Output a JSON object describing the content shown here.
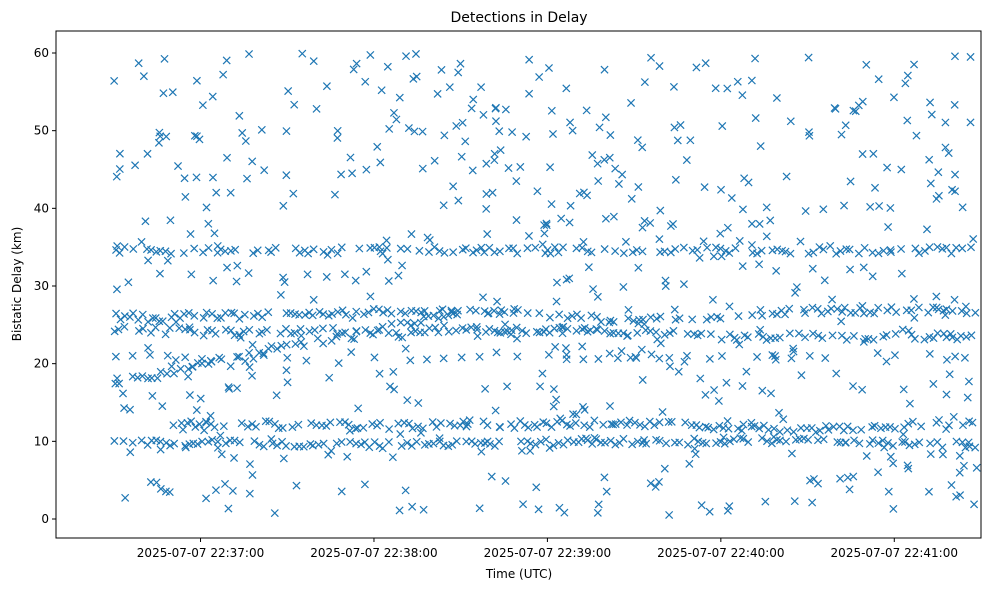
{
  "chart_data": {
    "type": "scatter",
    "title": "Detections in Delay",
    "xlabel": "Time (UTC)",
    "ylabel": "Bistatic Delay (km)",
    "marker": "x",
    "color": "#1f77b4",
    "x_axis": {
      "unit": "time",
      "start": "2025-07-07 22:36:10",
      "end": "2025-07-07 22:41:30",
      "ticks": [
        "2025-07-07 22:37:00",
        "2025-07-07 22:38:00",
        "2025-07-07 22:39:00",
        "2025-07-07 22:40:00",
        "2025-07-07 22:41:00"
      ]
    },
    "y_axis": {
      "ylim": [
        0,
        60
      ],
      "ticks": [
        0,
        10,
        20,
        30,
        40,
        50,
        60
      ]
    },
    "grid": false,
    "data_start": "2025-07-07 22:36:30",
    "data_end": "2025-07-07 22:41:29",
    "tracks": [
      {
        "description": "rising track",
        "points": [
          [
            "2025-07-07 22:36:30",
            17.5
          ],
          [
            "2025-07-07 22:36:45",
            18.5
          ],
          [
            "2025-07-07 22:37:00",
            19.8
          ],
          [
            "2025-07-07 22:37:15",
            21.0
          ],
          [
            "2025-07-07 22:37:30",
            22.3
          ],
          [
            "2025-07-07 22:37:45",
            23.3
          ],
          [
            "2025-07-07 22:38:00",
            24.2
          ],
          [
            "2025-07-07 22:38:15",
            25.5
          ],
          [
            "2025-07-07 22:38:30",
            26.5
          ]
        ]
      },
      {
        "description": "track near 26 km",
        "points": [
          [
            "2025-07-07 22:36:30",
            26.0
          ],
          [
            "2025-07-07 22:37:30",
            26.3
          ],
          [
            "2025-07-07 22:38:30",
            27.0
          ],
          [
            "2025-07-07 22:39:30",
            25.5
          ],
          [
            "2025-07-07 22:40:30",
            26.8
          ],
          [
            "2025-07-07 22:41:29",
            27.0
          ]
        ]
      },
      {
        "description": "track near 24 km",
        "points": [
          [
            "2025-07-07 22:36:30",
            24.5
          ],
          [
            "2025-07-07 22:37:00",
            24.0
          ],
          [
            "2025-07-07 22:38:30",
            24.5
          ],
          [
            "2025-07-07 22:39:30",
            24.0
          ],
          [
            "2025-07-07 22:40:00",
            23.5
          ],
          [
            "2025-07-07 22:41:29",
            23.5
          ]
        ]
      },
      {
        "description": "track near 34.6 km",
        "points": [
          [
            "2025-07-07 22:36:30",
            34.6
          ],
          [
            "2025-07-07 22:41:29",
            34.6
          ]
        ]
      },
      {
        "description": "track near 12 km",
        "points": [
          [
            "2025-07-07 22:36:50",
            12.3
          ],
          [
            "2025-07-07 22:38:00",
            12.0
          ],
          [
            "2025-07-07 22:39:30",
            12.3
          ],
          [
            "2025-07-07 22:40:30",
            11.5
          ],
          [
            "2025-07-07 22:41:29",
            12.5
          ]
        ]
      },
      {
        "description": "track near 10 km",
        "points": [
          [
            "2025-07-07 22:36:30",
            10.0
          ],
          [
            "2025-07-07 22:38:00",
            9.5
          ],
          [
            "2025-07-07 22:39:30",
            10.0
          ],
          [
            "2025-07-07 22:40:30",
            10.0
          ],
          [
            "2025-07-07 22:41:29",
            9.5
          ]
        ]
      },
      {
        "description": "track near 21 km",
        "points": [
          [
            "2025-07-07 22:36:30",
            21.0
          ],
          [
            "2025-07-07 22:37:00",
            20.5
          ],
          [
            "2025-07-07 22:41:10",
            21.0
          ],
          [
            "2025-07-07 22:41:29",
            20.5
          ]
        ]
      }
    ],
    "clutter": {
      "delay_range": [
        0.5,
        60
      ]
    }
  }
}
